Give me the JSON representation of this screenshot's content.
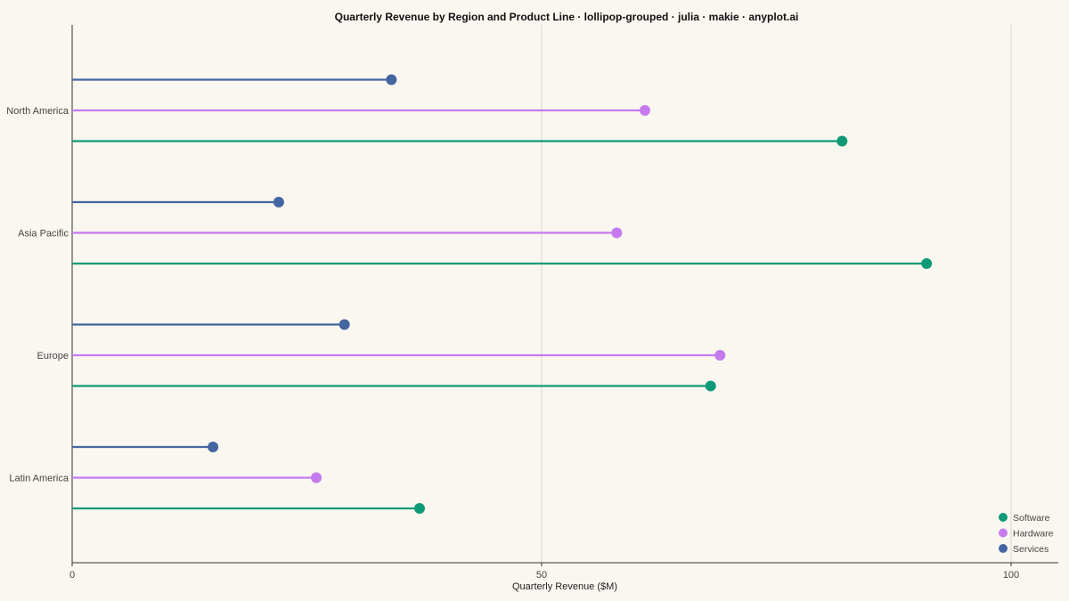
{
  "chart_data": {
    "type": "lollipop-grouped",
    "title": "Quarterly Revenue by Region and Product Line · lollipop-grouped · julia · makie · anyplot.ai",
    "xlabel": "Quarterly Revenue ($M)",
    "ylabel": "",
    "xlim": [
      0,
      100
    ],
    "xticks": [
      0,
      50,
      100
    ],
    "orientation": "horizontal",
    "grid": "vertical",
    "legend_position": "bottom-right",
    "categories": [
      "North America",
      "Asia Pacific",
      "Europe",
      "Latin America"
    ],
    "series": [
      {
        "name": "Services",
        "color": "#4466A0",
        "values": [
          34,
          22,
          29,
          15
        ]
      },
      {
        "name": "Hardware",
        "color": "#C57BEE",
        "values": [
          61,
          58,
          69,
          26
        ]
      },
      {
        "name": "Software",
        "color": "#0F9A77",
        "values": [
          82,
          91,
          68,
          37
        ]
      }
    ],
    "legend_order": [
      "Software",
      "Hardware",
      "Services"
    ]
  }
}
